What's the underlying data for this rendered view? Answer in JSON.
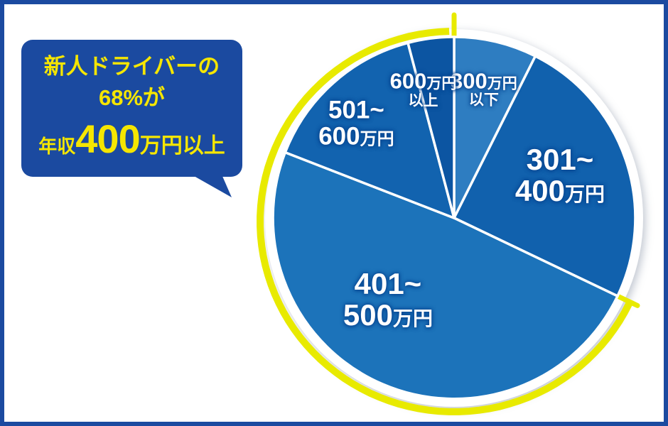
{
  "colors": {
    "frame": "#1b4aa0",
    "bubble_bg": "#1b4aa0",
    "bubble_text": "#f5e600",
    "arc_yellow": "#e8ea00",
    "label_text": "#ffffff"
  },
  "bubble": {
    "line1": "新人ドライバーの",
    "line2": "68%が",
    "line3_prefix": "年収",
    "line3_big": "400",
    "line3_suffix": "万円以上"
  },
  "chart_data": {
    "type": "pie",
    "annotation": "新人ドライバーの68%が年収400万円以上",
    "legend_position": "none",
    "start_angle_deg": 0,
    "direction": "clockwise",
    "highlight": {
      "text": "年収400万円以上",
      "percent": 68,
      "arc_color": "#e8ea00"
    },
    "segments": [
      {
        "name": "300万円以下",
        "percent": 7.4,
        "color": "#2e7dc1",
        "highlighted": false,
        "label": {
          "angle": 13,
          "r_frac": 0.73,
          "scale": "sm",
          "lines": [
            [
              {
                "t": "300",
                "c": "num"
              },
              {
                "t": "万円",
                "c": "unit"
              }
            ],
            [
              {
                "t": "以下",
                "c": "unit"
              }
            ]
          ]
        }
      },
      {
        "name": "301〜400万円",
        "percent": 24.7,
        "color": "#1161ad",
        "highlighted": false,
        "label": {
          "angle": 68,
          "r_frac": 0.63,
          "scale": "lg",
          "lines": [
            [
              {
                "t": "301~",
                "c": "num"
              }
            ],
            [
              {
                "t": "400",
                "c": "num"
              },
              {
                "t": "万円",
                "c": "unit"
              }
            ]
          ]
        }
      },
      {
        "name": "401〜500万円",
        "percent": 48.8,
        "color": "#1c73ba",
        "highlighted": true,
        "label": {
          "angle": 219,
          "r_frac": 0.58,
          "scale": "lg",
          "lines": [
            [
              {
                "t": "401~",
                "c": "num"
              }
            ],
            [
              {
                "t": "500",
                "c": "num"
              },
              {
                "t": "万円",
                "c": "unit"
              }
            ]
          ]
        }
      },
      {
        "name": "501〜600万円",
        "percent": 15.0,
        "color": "#1263af",
        "highlighted": true,
        "label": {
          "angle": 314,
          "r_frac": 0.75,
          "scale": "md",
          "lines": [
            [
              {
                "t": "501~",
                "c": "num"
              }
            ],
            [
              {
                "t": "600",
                "c": "num"
              },
              {
                "t": "万円",
                "c": "unit"
              }
            ]
          ]
        }
      },
      {
        "name": "600万円以上",
        "percent": 4.1,
        "color": "#0c55a2",
        "highlighted": true,
        "label": {
          "angle": 346.5,
          "r_frac": 0.73,
          "scale": "sm",
          "lines": [
            [
              {
                "t": "600",
                "c": "num"
              },
              {
                "t": "万円",
                "c": "unit"
              }
            ],
            [
              {
                "t": "以上",
                "c": "unit"
              }
            ]
          ]
        }
      }
    ]
  }
}
